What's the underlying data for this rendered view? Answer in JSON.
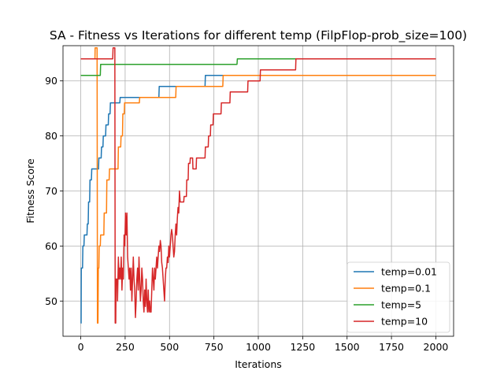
{
  "chart_data": {
    "type": "line",
    "title": "SA - Fitness vs Iterations for different temp (FilpFlop-prob_size=100)",
    "xlabel": "Iterations",
    "ylabel": "Fitness Score",
    "xlim": [
      -100,
      2100
    ],
    "ylim": [
      43.6,
      96.4
    ],
    "xticks": [
      0,
      250,
      500,
      750,
      1000,
      1250,
      1500,
      1750,
      2000
    ],
    "yticks": [
      50,
      60,
      70,
      80,
      90
    ],
    "grid": true,
    "legend_position": "lower-right",
    "series": [
      {
        "name": "temp=0.01",
        "color": "#1f77b4",
        "points": [
          [
            0,
            46
          ],
          [
            2,
            46
          ],
          [
            3,
            56
          ],
          [
            10,
            56
          ],
          [
            12,
            60
          ],
          [
            18,
            60
          ],
          [
            20,
            62
          ],
          [
            35,
            62
          ],
          [
            37,
            64
          ],
          [
            42,
            64
          ],
          [
            44,
            68
          ],
          [
            50,
            68
          ],
          [
            52,
            72
          ],
          [
            60,
            72
          ],
          [
            62,
            74
          ],
          [
            100,
            74
          ],
          [
            102,
            76
          ],
          [
            115,
            76
          ],
          [
            117,
            78
          ],
          [
            125,
            78
          ],
          [
            127,
            80
          ],
          [
            140,
            80
          ],
          [
            142,
            82
          ],
          [
            155,
            82
          ],
          [
            157,
            84
          ],
          [
            165,
            84
          ],
          [
            167,
            86
          ],
          [
            220,
            86
          ],
          [
            222,
            87
          ],
          [
            440,
            87
          ],
          [
            442,
            89
          ],
          [
            700,
            89
          ],
          [
            702,
            91
          ],
          [
            2000,
            91
          ]
        ]
      },
      {
        "name": "temp=0.1",
        "color": "#ff7f0e",
        "points": [
          [
            0,
            94
          ],
          [
            80,
            94
          ],
          [
            81,
            96
          ],
          [
            92,
            96
          ],
          [
            94,
            46
          ],
          [
            97,
            46
          ],
          [
            99,
            56
          ],
          [
            102,
            56
          ],
          [
            104,
            60
          ],
          [
            110,
            60
          ],
          [
            112,
            62
          ],
          [
            130,
            62
          ],
          [
            132,
            66
          ],
          [
            145,
            66
          ],
          [
            147,
            72
          ],
          [
            160,
            72
          ],
          [
            162,
            74
          ],
          [
            210,
            74
          ],
          [
            212,
            78
          ],
          [
            225,
            78
          ],
          [
            227,
            80
          ],
          [
            235,
            80
          ],
          [
            237,
            84
          ],
          [
            245,
            84
          ],
          [
            247,
            86
          ],
          [
            330,
            86
          ],
          [
            332,
            87
          ],
          [
            535,
            87
          ],
          [
            537,
            89
          ],
          [
            800,
            89
          ],
          [
            802,
            91
          ],
          [
            2000,
            91
          ]
        ]
      },
      {
        "name": "temp=5",
        "color": "#2ca02c",
        "points": [
          [
            0,
            91
          ],
          [
            110,
            91
          ],
          [
            112,
            93
          ],
          [
            880,
            93
          ],
          [
            882,
            94
          ],
          [
            2000,
            94
          ]
        ]
      },
      {
        "name": "temp=10",
        "color": "#d62728",
        "points": [
          [
            0,
            94
          ],
          [
            180,
            94
          ],
          [
            182,
            96
          ],
          [
            192,
            96
          ],
          [
            194,
            46
          ],
          [
            197,
            46
          ],
          [
            199,
            54
          ],
          [
            205,
            54
          ],
          [
            207,
            50
          ],
          [
            212,
            58
          ],
          [
            216,
            54
          ],
          [
            220,
            56
          ],
          [
            224,
            54
          ],
          [
            228,
            58
          ],
          [
            232,
            52
          ],
          [
            236,
            56
          ],
          [
            240,
            54
          ],
          [
            244,
            62
          ],
          [
            248,
            60
          ],
          [
            252,
            66
          ],
          [
            256,
            62
          ],
          [
            260,
            66
          ],
          [
            264,
            58
          ],
          [
            268,
            56
          ],
          [
            272,
            54
          ],
          [
            276,
            56
          ],
          [
            280,
            52
          ],
          [
            284,
            56
          ],
          [
            288,
            50
          ],
          [
            292,
            54
          ],
          [
            296,
            58
          ],
          [
            300,
            54
          ],
          [
            304,
            52
          ],
          [
            308,
            47
          ],
          [
            312,
            50
          ],
          [
            316,
            54
          ],
          [
            320,
            56
          ],
          [
            324,
            52
          ],
          [
            328,
            58
          ],
          [
            332,
            54
          ],
          [
            336,
            50
          ],
          [
            340,
            52
          ],
          [
            344,
            56
          ],
          [
            348,
            54
          ],
          [
            352,
            50
          ],
          [
            356,
            48
          ],
          [
            360,
            52
          ],
          [
            364,
            49
          ],
          [
            368,
            54
          ],
          [
            372,
            50
          ],
          [
            376,
            48
          ],
          [
            380,
            52
          ],
          [
            384,
            48
          ],
          [
            388,
            50
          ],
          [
            392,
            48
          ],
          [
            396,
            48
          ],
          [
            400,
            52
          ],
          [
            404,
            56
          ],
          [
            408,
            54
          ],
          [
            412,
            52
          ],
          [
            416,
            56
          ],
          [
            420,
            54
          ],
          [
            424,
            56
          ],
          [
            428,
            58
          ],
          [
            432,
            56
          ],
          [
            436,
            58
          ],
          [
            440,
            60
          ],
          [
            444,
            59
          ],
          [
            448,
            61
          ],
          [
            452,
            60
          ],
          [
            456,
            57
          ],
          [
            460,
            56
          ],
          [
            464,
            54
          ],
          [
            468,
            52
          ],
          [
            472,
            50
          ],
          [
            476,
            54
          ],
          [
            480,
            56
          ],
          [
            484,
            56
          ],
          [
            488,
            58
          ],
          [
            492,
            57
          ],
          [
            496,
            60
          ],
          [
            500,
            58
          ],
          [
            504,
            60
          ],
          [
            508,
            62
          ],
          [
            512,
            63
          ],
          [
            516,
            62
          ],
          [
            520,
            60
          ],
          [
            524,
            58
          ],
          [
            528,
            59
          ],
          [
            532,
            62
          ],
          [
            536,
            64
          ],
          [
            540,
            62
          ],
          [
            544,
            65
          ],
          [
            548,
            67
          ],
          [
            552,
            66
          ],
          [
            556,
            70
          ],
          [
            560,
            68
          ],
          [
            580,
            68
          ],
          [
            582,
            69
          ],
          [
            595,
            69
          ],
          [
            597,
            72
          ],
          [
            605,
            72
          ],
          [
            607,
            75
          ],
          [
            615,
            75
          ],
          [
            617,
            76
          ],
          [
            630,
            76
          ],
          [
            632,
            74
          ],
          [
            650,
            74
          ],
          [
            652,
            76
          ],
          [
            700,
            76
          ],
          [
            702,
            78
          ],
          [
            718,
            78
          ],
          [
            720,
            80
          ],
          [
            730,
            80
          ],
          [
            732,
            82
          ],
          [
            745,
            82
          ],
          [
            747,
            84
          ],
          [
            790,
            84
          ],
          [
            792,
            86
          ],
          [
            840,
            86
          ],
          [
            842,
            88
          ],
          [
            940,
            88
          ],
          [
            942,
            90
          ],
          [
            1010,
            90
          ],
          [
            1012,
            92
          ],
          [
            1210,
            92
          ],
          [
            1212,
            94
          ],
          [
            2000,
            94
          ]
        ]
      }
    ]
  }
}
